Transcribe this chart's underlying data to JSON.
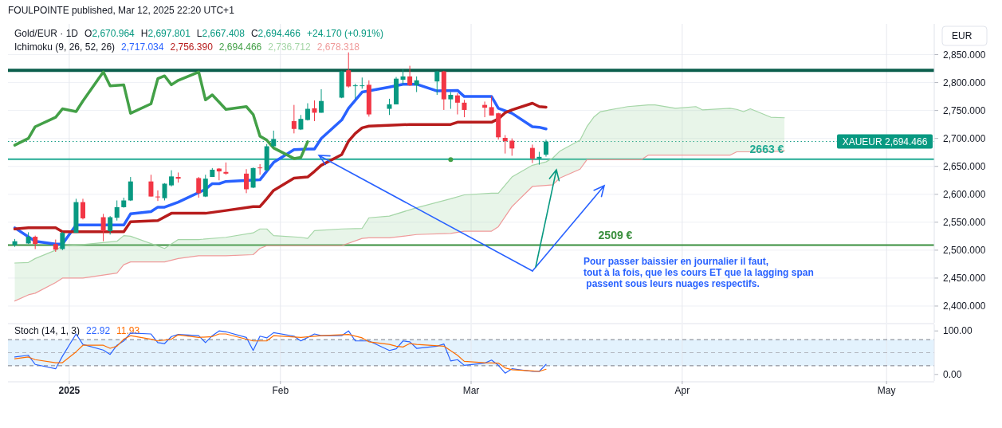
{
  "chart_data": [
    {
      "type": "candlestick",
      "title": "Gold/EUR · 1D",
      "legend_title": "Ichimoku (9, 26, 52, 26)",
      "ylabel": "EUR",
      "grid": true,
      "tick_labels": "y",
      "annotations": [
        "FOULPOINTE published, Mar 12, 2025 22:20 UTC+1",
        "O2,670.964",
        "H2,697.801",
        "L2,667.408",
        "C2,694.466",
        "+24.170 (+0.91%)",
        "2,717.034",
        "2,756.390",
        "2,694.466",
        "2,736.712",
        "2,678.318",
        "Pour passer baissier en journalier il faut,\ntout à la fois, que les cours ET que la lagging span\n passent sous leurs nuages respectifs."
      ],
      "x": [
        "2024-12-24",
        "2024-12-26",
        "2024-12-27",
        "2024-12-30",
        "2024-12-31",
        "2025-01-02",
        "2025-01-03",
        "2025-01-06",
        "2025-01-07",
        "2025-01-08",
        "2025-01-09",
        "2025-01-10",
        "2025-01-13",
        "2025-01-14",
        "2025-01-15",
        "2025-01-16",
        "2025-01-17",
        "2025-01-20",
        "2025-01-21",
        "2025-01-22",
        "2025-01-23",
        "2025-01-24",
        "2025-01-27",
        "2025-01-28",
        "2025-01-29",
        "2025-01-30",
        "2025-01-31",
        "2025-02-03",
        "2025-02-04",
        "2025-02-05",
        "2025-02-06",
        "2025-02-07",
        "2025-02-10",
        "2025-02-11",
        "2025-02-12",
        "2025-02-13",
        "2025-02-14",
        "2025-02-17",
        "2025-02-18",
        "2025-02-19",
        "2025-02-20",
        "2025-02-21",
        "2025-02-24",
        "2025-02-25",
        "2025-02-26",
        "2025-02-27",
        "2025-02-28",
        "2025-03-03",
        "2025-03-04",
        "2025-03-05",
        "2025-03-06",
        "2025-03-07",
        "2025-03-10",
        "2025-03-11",
        "2025-03-12"
      ],
      "ohlc": [
        [
          2509,
          2520,
          2506,
          2516
        ],
        [
          2512,
          2532,
          2511,
          2524
        ],
        [
          2524,
          2526,
          2502,
          2511
        ],
        [
          2511,
          2519,
          2497,
          2501
        ],
        [
          2502,
          2533,
          2500,
          2531
        ],
        [
          2531,
          2592,
          2531,
          2586
        ],
        [
          2586,
          2592,
          2555,
          2557
        ],
        [
          2559,
          2565,
          2516,
          2534
        ],
        [
          2534,
          2561,
          2528,
          2559
        ],
        [
          2558,
          2589,
          2553,
          2577
        ],
        [
          2577,
          2594,
          2576,
          2589
        ],
        [
          2589,
          2631,
          2588,
          2623
        ],
        [
          2623,
          2635,
          2596,
          2596
        ],
        [
          2596,
          2607,
          2588,
          2595
        ],
        [
          2593,
          2620,
          2589,
          2619
        ],
        [
          2616,
          2643,
          2614,
          2632
        ],
        [
          2631,
          2639,
          2621,
          2628
        ],
        [
          2629,
          2631,
          2594,
          2602
        ],
        [
          2596,
          2635,
          2595,
          2628
        ],
        [
          2631,
          2647,
          2631,
          2644
        ],
        [
          2646,
          2647,
          2625,
          2641
        ],
        [
          2640,
          2657,
          2635,
          2637
        ],
        [
          2637,
          2645,
          2602,
          2609
        ],
        [
          2612,
          2648,
          2611,
          2647
        ],
        [
          2648,
          2654,
          2635,
          2647
        ],
        [
          2643,
          2690,
          2642,
          2686
        ],
        [
          2686,
          2714,
          2685,
          2699
        ],
        [
          2731,
          2760,
          2709,
          2717
        ],
        [
          2716,
          2742,
          2715,
          2735
        ],
        [
          2733,
          2763,
          2732,
          2753
        ],
        [
          2754,
          2768,
          2731,
          2746
        ],
        [
          2746,
          2788,
          2746,
          2767
        ],
        [
          2773,
          2821,
          2772,
          2820
        ],
        [
          2822,
          2854,
          2791,
          2793
        ],
        [
          2794,
          2798,
          2771,
          2795
        ],
        [
          2794,
          2809,
          2789,
          2795
        ],
        [
          2796,
          2804,
          2739,
          2743
        ],
        [
          2753,
          2771,
          2742,
          2761
        ],
        [
          2761,
          2810,
          2761,
          2807
        ],
        [
          2805,
          2824,
          2797,
          2811
        ],
        [
          2811,
          2830,
          2794,
          2795
        ],
        [
          2795,
          2811,
          2783,
          2804
        ],
        [
          2802,
          2821,
          2778,
          2820
        ],
        [
          2820,
          2821,
          2751,
          2770
        ],
        [
          2770,
          2783,
          2753,
          2778
        ],
        [
          2777,
          2781,
          2743,
          2764
        ],
        [
          2764,
          2769,
          2738,
          2751
        ],
        [
          2760,
          2766,
          2738,
          2755
        ],
        [
          2756,
          2776,
          2741,
          2741
        ],
        [
          2745,
          2746,
          2698,
          2702
        ],
        [
          2701,
          2706,
          2673,
          2695
        ],
        [
          2696,
          2700,
          2669,
          2682
        ],
        [
          2683,
          2689,
          2656,
          2664
        ],
        [
          2664,
          2676,
          2653,
          2667
        ],
        [
          2670.964,
          2697.801,
          2667.408,
          2694.466
        ]
      ],
      "colors": [
        "#089981",
        "#089981",
        "#f23645",
        "#f23645",
        "#089981",
        "#089981",
        "#f23645",
        "#f23645",
        "#089981",
        "#089981",
        "#089981",
        "#089981",
        "#f23645",
        "#f23645",
        "#089981",
        "#089981",
        "#f23645",
        "#f23645",
        "#089981",
        "#089981",
        "#f23645",
        "#f23645",
        "#f23645",
        "#089981",
        "#f23645",
        "#089981",
        "#089981",
        "#f23645",
        "#089981",
        "#089981",
        "#f23645",
        "#089981",
        "#089981",
        "#f23645",
        "#089981",
        "#089981",
        "#f23645",
        "#089981",
        "#089981",
        "#089981",
        "#f23645",
        "#089981",
        "#089981",
        "#f23645",
        "#089981",
        "#f23645",
        "#f23645",
        "#f23645",
        "#f23645",
        "#f23645",
        "#f23645",
        "#f23645",
        "#f23645",
        "#089981",
        "#089981"
      ],
      "series": [
        {
          "type": "line",
          "color": "#2962ff",
          "x": [
            "2024-12-24",
            "2024-12-27",
            "2024-12-30",
            "2024-12-31",
            "2025-01-02",
            "2025-01-09",
            "2025-01-10",
            "2025-01-13",
            "2025-01-14",
            "2025-01-15",
            "2025-01-17",
            "2025-01-21",
            "2025-01-22",
            "2025-01-23",
            "2025-01-24",
            "2025-01-29",
            "2025-01-31",
            "2025-02-03",
            "2025-02-05",
            "2025-02-06",
            "2025-02-07",
            "2025-02-10",
            "2025-02-11",
            "2025-02-13",
            "2025-02-17",
            "2025-02-19",
            "2025-02-21",
            "2025-02-24",
            "2025-02-27",
            "2025-02-28",
            "2025-03-04",
            "2025-03-05",
            "2025-03-07",
            "2025-03-10",
            "2025-03-11",
            "2025-03-12"
          ],
          "values": [
            2540,
            2516,
            2511,
            2511,
            2545,
            2545,
            2565,
            2569,
            2577,
            2577,
            2586,
            2609,
            2619,
            2619,
            2623,
            2626,
            2657,
            2680,
            2681,
            2681,
            2700,
            2733,
            2754,
            2783,
            2792,
            2797,
            2797,
            2785,
            2786,
            2775,
            2775,
            2754,
            2745,
            2721,
            2720,
            2717
          ]
        },
        {
          "type": "line",
          "color": "#b71c1c",
          "x": [
            "2024-12-24",
            "2024-12-26",
            "2024-12-30",
            "2024-12-31",
            "2025-01-09",
            "2025-01-10",
            "2025-01-14",
            "2025-01-16",
            "2025-01-21",
            "2025-01-24",
            "2025-01-28",
            "2025-01-29",
            "2025-01-30",
            "2025-01-31",
            "2025-02-03",
            "2025-02-04",
            "2025-02-05",
            "2025-02-06",
            "2025-02-07",
            "2025-02-10",
            "2025-02-11",
            "2025-02-12",
            "2025-02-13",
            "2025-02-14",
            "2025-02-20",
            "2025-02-26",
            "2025-02-27",
            "2025-03-04",
            "2025-03-05",
            "2025-03-06",
            "2025-03-07",
            "2025-03-10",
            "2025-03-11",
            "2025-03-12"
          ],
          "values": [
            2538,
            2540,
            2540,
            2533,
            2533,
            2551,
            2553,
            2566,
            2566,
            2571,
            2578,
            2578,
            2592,
            2607,
            2629,
            2630,
            2631,
            2641,
            2652,
            2671,
            2695,
            2709,
            2719,
            2722,
            2725,
            2725,
            2729,
            2729,
            2735,
            2746,
            2751,
            2763,
            2757,
            2756
          ]
        },
        {
          "type": "line",
          "color": "#43a047",
          "x": [
            "2024-12-24",
            "2024-12-26",
            "2024-12-27",
            "2024-12-30",
            "2024-12-31",
            "2025-01-02",
            "2025-01-03",
            "2025-01-06",
            "2025-01-07",
            "2025-01-09",
            "2025-01-10",
            "2025-01-13",
            "2025-01-14",
            "2025-01-15",
            "2025-01-16",
            "2025-01-17",
            "2025-01-20",
            "2025-01-21",
            "2025-01-22",
            "2025-01-24",
            "2025-01-27",
            "2025-01-28",
            "2025-01-29",
            "2025-01-30",
            "2025-01-31",
            "2025-02-03",
            "2025-02-04",
            "2025-02-05"
          ],
          "values": [
            2688,
            2700,
            2721,
            2738,
            2753,
            2748,
            2767,
            2819,
            2794,
            2796,
            2745,
            2762,
            2807,
            2812,
            2796,
            2804,
            2819,
            2769,
            2778,
            2752,
            2757,
            2743,
            2704,
            2697,
            2683,
            2664,
            2666,
            2694
          ]
        },
        {
          "type": "line",
          "color": "#a5d6a7",
          "x": [
            "2024-12-24",
            "2024-12-26",
            "2024-12-27",
            "2024-12-30",
            "2024-12-31",
            "2025-01-03",
            "2025-01-08",
            "2025-01-09",
            "2025-01-10",
            "2025-01-15",
            "2025-01-17",
            "2025-01-20",
            "2025-01-24",
            "2025-01-28",
            "2025-01-29",
            "2025-01-30",
            "2025-01-31",
            "2025-02-04",
            "2025-02-05",
            "2025-02-06",
            "2025-02-10",
            "2025-02-13",
            "2025-02-14",
            "2025-02-17",
            "2025-02-21",
            "2025-02-26",
            "2025-02-28",
            "2025-03-04",
            "2025-03-05",
            "2025-03-07",
            "2025-03-10",
            "2025-03-12",
            "2025-03-13",
            "2025-03-14",
            "2025-03-17",
            "2025-03-18",
            "2025-03-19",
            "2025-03-20",
            "2025-03-24",
            "2025-03-26",
            "2025-03-27",
            "2025-03-28",
            "2025-03-31",
            "2025-04-03",
            "2025-04-04",
            "2025-04-08",
            "2025-04-09",
            "2025-04-10",
            "2025-04-11",
            "2025-04-14",
            "2025-04-16"
          ],
          "values": [
            2477,
            2478,
            2485,
            2500,
            2508,
            2510,
            2516,
            2526,
            2525,
            2503,
            2519,
            2519,
            2523,
            2531,
            2538,
            2538,
            2526,
            2523,
            2521,
            2535,
            2538,
            2539,
            2558,
            2561,
            2576,
            2592,
            2599,
            2602,
            2602,
            2631,
            2652,
            2658,
            2665,
            2677,
            2697,
            2721,
            2738,
            2748,
            2757,
            2759,
            2760,
            2760,
            2754,
            2757,
            2751,
            2754,
            2752,
            2748,
            2753,
            2738,
            2737
          ],
          "upper": [
            2477,
            2478,
            2485,
            2500,
            2508,
            2510,
            2516,
            2526,
            2525,
            2503,
            2519,
            2519,
            2523,
            2531,
            2538,
            2538,
            2526,
            2523,
            2521,
            2535,
            2538,
            2539,
            2558,
            2561,
            2576,
            2592,
            2599,
            2602,
            2602,
            2631,
            2652,
            2658,
            2665,
            2677,
            2697,
            2721,
            2738,
            2748,
            2757,
            2759,
            2760,
            2760,
            2754,
            2757,
            2751,
            2754,
            2752,
            2748,
            2753,
            2738,
            2737
          ],
          "lower": [
            2409,
            2420,
            2423,
            2442,
            2450,
            2450,
            2459,
            2474,
            2479,
            2479,
            2485,
            2490,
            2490,
            2492,
            2503,
            2508,
            2508,
            2508,
            2508,
            2508,
            2508,
            2521,
            2522,
            2522,
            2528,
            2530,
            2534,
            2534,
            2542,
            2578,
            2614,
            2616,
            2617,
            2629,
            2645,
            2662,
            2662,
            2662,
            2662,
            2662,
            2670,
            2670,
            2670,
            2670,
            2670,
            2670,
            2676,
            2676,
            2676,
            2676,
            2678
          ]
        },
        {
          "type": "line",
          "color": "#ef9a9a",
          "x": [
            "2024-12-24",
            "2024-12-26",
            "2024-12-27",
            "2024-12-30",
            "2024-12-31",
            "2025-01-03",
            "2025-01-08",
            "2025-01-09",
            "2025-01-10",
            "2025-01-15",
            "2025-01-17",
            "2025-01-20",
            "2025-01-24",
            "2025-01-28",
            "2025-01-29",
            "2025-01-30",
            "2025-01-31",
            "2025-02-04",
            "2025-02-05",
            "2025-02-06",
            "2025-02-10",
            "2025-02-13",
            "2025-02-14",
            "2025-02-17",
            "2025-02-21",
            "2025-02-26",
            "2025-02-28",
            "2025-03-04",
            "2025-03-05",
            "2025-03-07",
            "2025-03-10",
            "2025-03-12",
            "2025-03-13",
            "2025-03-14",
            "2025-03-17",
            "2025-03-18",
            "2025-03-19",
            "2025-03-20",
            "2025-03-24",
            "2025-03-26",
            "2025-03-27",
            "2025-03-28",
            "2025-03-31",
            "2025-04-03",
            "2025-04-04",
            "2025-04-08",
            "2025-04-09",
            "2025-04-10",
            "2025-04-11",
            "2025-04-14",
            "2025-04-16"
          ],
          "values": [
            2409,
            2420,
            2423,
            2442,
            2450,
            2450,
            2459,
            2474,
            2479,
            2479,
            2485,
            2490,
            2490,
            2492,
            2503,
            2508,
            2508,
            2508,
            2508,
            2508,
            2508,
            2521,
            2522,
            2522,
            2528,
            2530,
            2534,
            2534,
            2542,
            2578,
            2614,
            2616,
            2617,
            2629,
            2645,
            2662,
            2662,
            2662,
            2662,
            2662,
            2670,
            2670,
            2670,
            2670,
            2670,
            2670,
            2676,
            2676,
            2676,
            2676,
            2678
          ]
        },
        {
          "type": "scatter",
          "color": "#43a047",
          "x": [
            "2025-02-26"
          ],
          "values": [
            2662
          ]
        }
      ],
      "ref_lines": [
        {
          "axis": "y",
          "value": 2822,
          "color": "#0b5e4c"
        },
        {
          "axis": "y",
          "value": 2694.466,
          "label": "XAUEUR 2,694.466",
          "color": "#089981",
          "line_style": "dotted"
        },
        {
          "axis": "y",
          "value": 2663,
          "label": "2663 €",
          "color": "#22ab94"
        },
        {
          "axis": "y",
          "value": 2509,
          "label": "2509 €",
          "color": "#388e3c"
        }
      ],
      "xlim": [
        "2024-12-23",
        "2025-05-08"
      ],
      "xticks": [
        {
          "value": "2025-01-01",
          "label": null
        },
        {
          "value": "2025-02-01",
          "label": null
        },
        {
          "value": "2025-03-01",
          "label": null
        },
        {
          "value": "2025-04-01",
          "label": null
        },
        {
          "value": "2025-05-01",
          "label": null
        }
      ],
      "ylim": [
        2370,
        2905
      ],
      "yticks": [
        {
          "value": 2400,
          "label": "2,400.000"
        },
        {
          "value": 2450,
          "label": "2,450.000"
        },
        {
          "value": 2500,
          "label": "2,500.000"
        },
        {
          "value": 2550,
          "label": "2,550.000"
        },
        {
          "value": 2600,
          "label": "2,600.000"
        },
        {
          "value": 2650,
          "label": "2,650.000"
        },
        {
          "value": 2700,
          "label": "2,700.000"
        },
        {
          "value": 2750,
          "label": "2,750.000"
        },
        {
          "value": 2800,
          "label": "2,800.000"
        },
        {
          "value": 2850,
          "label": "2,850.000"
        }
      ]
    },
    {
      "type": "line",
      "legend_title": "Stoch (14, 1, 3)",
      "annotations": [
        "22.92",
        "11.93"
      ],
      "grid": "x",
      "series": [
        {
          "color": "#2962ff",
          "x": [
            "2024-12-24",
            "2024-12-26",
            "2024-12-27",
            "2024-12-30",
            "2024-12-31",
            "2025-01-02",
            "2025-01-03",
            "2025-01-06",
            "2025-01-07",
            "2025-01-08",
            "2025-01-09",
            "2025-01-10",
            "2025-01-13",
            "2025-01-14",
            "2025-01-15",
            "2025-01-16",
            "2025-01-17",
            "2025-01-20",
            "2025-01-21",
            "2025-01-22",
            "2025-01-23",
            "2025-01-24",
            "2025-01-27",
            "2025-01-28",
            "2025-01-29",
            "2025-01-30",
            "2025-01-31",
            "2025-02-03",
            "2025-02-04",
            "2025-02-05",
            "2025-02-06",
            "2025-02-07",
            "2025-02-10",
            "2025-02-11",
            "2025-02-12",
            "2025-02-13",
            "2025-02-14",
            "2025-02-17",
            "2025-02-18",
            "2025-02-19",
            "2025-02-20",
            "2025-02-21",
            "2025-02-24",
            "2025-02-25",
            "2025-02-26",
            "2025-02-27",
            "2025-02-28",
            "2025-03-03",
            "2025-03-04",
            "2025-03-05",
            "2025-03-06",
            "2025-03-07",
            "2025-03-10",
            "2025-03-11",
            "2025-03-12"
          ],
          "values": [
            40,
            44,
            23,
            13,
            42,
            93,
            69,
            56,
            46,
            67,
            77,
            95,
            93,
            73,
            71,
            87,
            92,
            89,
            73,
            89,
            100,
            98,
            85,
            55,
            88,
            84,
            96,
            88,
            77,
            85,
            93,
            89,
            89,
            100,
            77,
            77,
            77,
            55,
            59,
            77,
            75,
            60,
            65,
            70,
            31,
            34,
            21,
            26,
            33,
            21,
            3,
            13,
            7,
            7,
            23
          ]
        },
        {
          "color": "#ff6d00",
          "x": [
            "2024-12-24",
            "2024-12-26",
            "2024-12-27",
            "2024-12-30",
            "2024-12-31",
            "2025-01-02",
            "2025-01-03",
            "2025-01-06",
            "2025-01-07",
            "2025-01-08",
            "2025-01-09",
            "2025-01-10",
            "2025-01-13",
            "2025-01-14",
            "2025-01-16",
            "2025-01-17",
            "2025-01-20",
            "2025-01-22",
            "2025-01-23",
            "2025-01-24",
            "2025-01-28",
            "2025-01-30",
            "2025-01-31",
            "2025-02-04",
            "2025-02-07",
            "2025-02-11",
            "2025-02-13",
            "2025-02-14",
            "2025-02-17",
            "2025-02-18",
            "2025-02-19",
            "2025-02-20",
            "2025-02-21",
            "2025-02-25",
            "2025-02-27",
            "2025-02-28",
            "2025-03-03",
            "2025-03-05",
            "2025-03-06",
            "2025-03-07",
            "2025-03-10",
            "2025-03-11",
            "2025-03-12"
          ],
          "values": [
            36,
            40,
            34,
            27,
            27,
            52,
            67,
            67,
            60,
            65,
            81,
            89,
            81,
            77,
            81,
            91,
            85,
            87,
            93,
            93,
            77,
            77,
            89,
            85,
            89,
            92,
            84,
            75,
            69,
            65,
            63,
            71,
            69,
            65,
            44,
            30,
            27,
            26,
            15,
            11,
            8,
            7,
            12
          ]
        }
      ],
      "bands": [
        {
          "axis": "y",
          "from": 20,
          "to": 80,
          "color": "#e3f2fd"
        }
      ],
      "ref_lines": [
        {
          "axis": "y",
          "value": 80,
          "color": "#787b86",
          "line_style": "dashed"
        },
        {
          "axis": "y",
          "value": 50,
          "color": "#b2b5be",
          "line_style": "dashed"
        },
        {
          "axis": "y",
          "value": 20,
          "color": "#787b86",
          "line_style": "dashed"
        }
      ],
      "xlim": [
        "2024-12-23",
        "2025-05-08"
      ],
      "xticks": [
        {
          "value": "2025-01-01",
          "label": "2025"
        },
        {
          "value": "2025-02-01",
          "label": "Feb"
        },
        {
          "value": "2025-03-01",
          "label": "Mar"
        },
        {
          "value": "2025-04-01",
          "label": "Apr"
        },
        {
          "value": "2025-05-01",
          "label": "May"
        }
      ],
      "ylim": [
        -15,
        115
      ],
      "yticks": [
        {
          "value": 100,
          "label": "100.00"
        },
        {
          "value": 0,
          "label": "0.00"
        }
      ]
    }
  ]
}
